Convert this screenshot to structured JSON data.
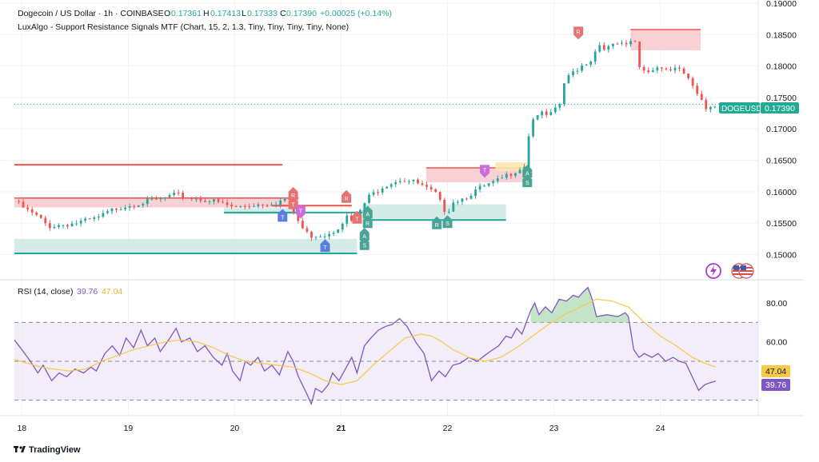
{
  "header": {
    "symbol": "Dogecoin / US Dollar · 1h · COINBASE",
    "o_label": "O",
    "o_value": "0.17361",
    "h_label": "H",
    "h_value": "0.17413",
    "l_label": "L",
    "l_value": "0.17333",
    "c_label": "C",
    "c_value": "0.17390",
    "change": "+0.00025 (+0.14%)",
    "indicator": "LuxAlgo - Support Resistance Signals MTF (Chart, 15, 2, 1.3, Tiny, Tiny, Tiny, Tiny, None)"
  },
  "rsi_header": {
    "name": "RSI (14, close)",
    "rsi_value": "39.76",
    "ma_value": "47.04"
  },
  "price_tag": {
    "symbol": "DOGEUSD",
    "value": "0.17390"
  },
  "rsi_tags": {
    "ma": "47.04",
    "rsi": "39.76"
  },
  "footer": {
    "brand": "TradingView"
  },
  "icons": {
    "flash": "flash-icon",
    "flag": "us-flag-icon",
    "logo": "tradingview-logo-icon"
  },
  "colors": {
    "up": "#26a69a",
    "down": "#ef5350",
    "rsi": "#7e57c2",
    "rsi_ma": "#f7c948",
    "resistance_fill": "#f8c9cc",
    "support_fill": "#cfe9e6",
    "last_price": "#22ab94"
  },
  "chart_data": [
    {
      "type": "candlestick",
      "title": "Dogecoin / US Dollar · 1h · COINBASE",
      "y_ticks": [
        "0.19000",
        "0.18500",
        "0.18000",
        "0.17500",
        "0.17000",
        "0.16500",
        "0.16000",
        "0.15500",
        "0.15000"
      ],
      "ylim": [
        0.146,
        0.1905
      ],
      "x_ticks": [
        "18",
        "19",
        "20",
        "21",
        "22",
        "23",
        "24"
      ],
      "xlim": [
        17.93,
        24.92
      ],
      "last_price": 0.1739,
      "anchors": [
        [
          17.93,
          0.1585
        ],
        [
          18.05,
          0.157
        ],
        [
          18.15,
          0.156
        ],
        [
          18.25,
          0.1545
        ],
        [
          18.35,
          0.1547
        ],
        [
          18.5,
          0.155
        ],
        [
          18.7,
          0.1557
        ],
        [
          18.9,
          0.1575
        ],
        [
          19.1,
          0.1582
        ],
        [
          19.3,
          0.1588
        ],
        [
          19.45,
          0.1595
        ],
        [
          19.6,
          0.159
        ],
        [
          19.8,
          0.1585
        ],
        [
          20.0,
          0.1575
        ],
        [
          20.2,
          0.158
        ],
        [
          20.4,
          0.1583
        ],
        [
          20.5,
          0.159
        ],
        [
          20.55,
          0.157
        ],
        [
          20.62,
          0.1545
        ],
        [
          20.7,
          0.153
        ],
        [
          20.85,
          0.1532
        ],
        [
          20.95,
          0.154
        ],
        [
          21.05,
          0.156
        ],
        [
          21.12,
          0.155
        ],
        [
          21.18,
          0.157
        ],
        [
          21.25,
          0.159
        ],
        [
          21.4,
          0.161
        ],
        [
          21.55,
          0.162
        ],
        [
          21.7,
          0.1615
        ],
        [
          21.8,
          0.1605
        ],
        [
          21.9,
          0.1595
        ],
        [
          21.95,
          0.1575
        ],
        [
          22.0,
          0.1568
        ],
        [
          22.05,
          0.1585
        ],
        [
          22.15,
          0.159
        ],
        [
          22.3,
          0.1605
        ],
        [
          22.45,
          0.1615
        ],
        [
          22.55,
          0.1625
        ],
        [
          22.65,
          0.1635
        ],
        [
          22.72,
          0.164
        ],
        [
          22.78,
          0.171
        ],
        [
          22.85,
          0.1725
        ],
        [
          22.95,
          0.172
        ],
        [
          23.05,
          0.1735
        ],
        [
          23.1,
          0.1775
        ],
        [
          23.18,
          0.179
        ],
        [
          23.25,
          0.18
        ],
        [
          23.35,
          0.181
        ],
        [
          23.42,
          0.1835
        ],
        [
          23.5,
          0.1828
        ],
        [
          23.6,
          0.1835
        ],
        [
          23.7,
          0.183
        ],
        [
          23.75,
          0.185
        ],
        [
          23.8,
          0.18
        ],
        [
          23.88,
          0.179
        ],
        [
          23.95,
          0.18
        ],
        [
          24.05,
          0.1795
        ],
        [
          24.15,
          0.1795
        ],
        [
          24.25,
          0.1785
        ],
        [
          24.32,
          0.176
        ],
        [
          24.38,
          0.1745
        ],
        [
          24.42,
          0.173
        ],
        [
          24.47,
          0.1737
        ],
        [
          24.52,
          0.1739
        ]
      ],
      "resistance_zones": [
        {
          "x0": 17.93,
          "x1": 20.6,
          "y0": 0.1575,
          "y1": 0.159
        },
        {
          "x0": 21.8,
          "x1": 22.75,
          "y0": 0.1615,
          "y1": 0.1638
        },
        {
          "x0": 23.72,
          "x1": 24.38,
          "y0": 0.1825,
          "y1": 0.1858
        }
      ],
      "support_zones": [
        {
          "x0": 17.93,
          "x1": 21.15,
          "y0": 0.1502,
          "y1": 0.1525
        },
        {
          "x0": 19.9,
          "x1": 20.6,
          "y0": 0.1564,
          "y1": 0.1574
        },
        {
          "x0": 21.2,
          "x1": 22.55,
          "y0": 0.1555,
          "y1": 0.158
        }
      ],
      "resistance_lines": [
        {
          "x0": 17.93,
          "x1": 20.45,
          "y": 0.1643
        },
        {
          "x0": 20.35,
          "x1": 21.1,
          "y": 0.1578
        }
      ],
      "support_lines": [
        {
          "x0": 17.93,
          "x1": 21.15,
          "y": 0.1502
        },
        {
          "x0": 19.9,
          "x1": 21.2,
          "y": 0.1567
        },
        {
          "x0": 21.25,
          "x1": 22.55,
          "y": 0.1555
        }
      ],
      "highlight_zone": {
        "x0": 22.45,
        "x1": 22.75,
        "y0": 0.1633,
        "y1": 0.1647
      },
      "signals": [
        {
          "x": 20.55,
          "y": 0.1595,
          "text": "R",
          "kind": "R",
          "dir": "up"
        },
        {
          "x": 20.55,
          "y": 0.158,
          "text": "T",
          "kind": "R",
          "dir": "up"
        },
        {
          "x": 20.45,
          "y": 0.156,
          "text": "T",
          "kind": "T",
          "dir": "up"
        },
        {
          "x": 20.62,
          "y": 0.157,
          "text": "T",
          "kind": "P",
          "dir": "down"
        },
        {
          "x": 21.05,
          "y": 0.159,
          "text": "R",
          "kind": "R",
          "dir": "up"
        },
        {
          "x": 21.15,
          "y": 0.1557,
          "text": "T",
          "kind": "R",
          "dir": "up"
        },
        {
          "x": 21.25,
          "y": 0.1565,
          "text": "A",
          "kind": "S",
          "dir": "up"
        },
        {
          "x": 21.25,
          "y": 0.155,
          "text": "R",
          "kind": "S",
          "dir": "up"
        },
        {
          "x": 21.22,
          "y": 0.153,
          "text": "A",
          "kind": "S",
          "dir": "up"
        },
        {
          "x": 21.22,
          "y": 0.1515,
          "text": "S",
          "kind": "S",
          "dir": "up"
        },
        {
          "x": 20.85,
          "y": 0.1512,
          "text": "T",
          "kind": "T",
          "dir": "up"
        },
        {
          "x": 21.9,
          "y": 0.1548,
          "text": "R",
          "kind": "S",
          "dir": "up"
        },
        {
          "x": 22.0,
          "y": 0.155,
          "text": "S",
          "kind": "S",
          "dir": "up"
        },
        {
          "x": 22.35,
          "y": 0.1635,
          "text": "T",
          "kind": "P",
          "dir": "down"
        },
        {
          "x": 22.75,
          "y": 0.163,
          "text": "A",
          "kind": "S",
          "dir": "up"
        },
        {
          "x": 22.75,
          "y": 0.1615,
          "text": "S",
          "kind": "S",
          "dir": "up"
        },
        {
          "x": 23.23,
          "y": 0.1855,
          "text": "R",
          "kind": "R",
          "dir": "down"
        }
      ]
    },
    {
      "type": "line",
      "title": "RSI (14, close)",
      "y_ticks": [
        "80.00",
        "60.00"
      ],
      "ylim": [
        22,
        92
      ],
      "bands": {
        "upper": 70,
        "middle": 50,
        "lower": 30
      },
      "series": [
        {
          "name": "RSI",
          "color": "#7e57c2",
          "points": [
            [
              17.93,
              61
            ],
            [
              18.0,
              56
            ],
            [
              18.08,
              50
            ],
            [
              18.15,
              44
            ],
            [
              18.2,
              48
            ],
            [
              18.28,
              40
            ],
            [
              18.35,
              44
            ],
            [
              18.42,
              42
            ],
            [
              18.5,
              46
            ],
            [
              18.58,
              44
            ],
            [
              18.65,
              47
            ],
            [
              18.7,
              45
            ],
            [
              18.78,
              54
            ],
            [
              18.85,
              58
            ],
            [
              18.92,
              53
            ],
            [
              18.98,
              62
            ],
            [
              19.05,
              57
            ],
            [
              19.12,
              66
            ],
            [
              19.18,
              58
            ],
            [
              19.25,
              62
            ],
            [
              19.3,
              55
            ],
            [
              19.38,
              61
            ],
            [
              19.45,
              67
            ],
            [
              19.5,
              60
            ],
            [
              19.58,
              62
            ],
            [
              19.65,
              55
            ],
            [
              19.72,
              58
            ],
            [
              19.8,
              52
            ],
            [
              19.88,
              48
            ],
            [
              19.93,
              54
            ],
            [
              19.98,
              45
            ],
            [
              20.05,
              40
            ],
            [
              20.1,
              50
            ],
            [
              20.15,
              48
            ],
            [
              20.22,
              52
            ],
            [
              20.28,
              45
            ],
            [
              20.35,
              48
            ],
            [
              20.42,
              43
            ],
            [
              20.5,
              55
            ],
            [
              20.55,
              50
            ],
            [
              20.6,
              42
            ],
            [
              20.68,
              33
            ],
            [
              20.72,
              28
            ],
            [
              20.76,
              36
            ],
            [
              20.82,
              34
            ],
            [
              20.88,
              38
            ],
            [
              20.92,
              44
            ],
            [
              20.98,
              40
            ],
            [
              21.05,
              47
            ],
            [
              21.1,
              52
            ],
            [
              21.15,
              44
            ],
            [
              21.22,
              58
            ],
            [
              21.28,
              62
            ],
            [
              21.35,
              66
            ],
            [
              21.42,
              68
            ],
            [
              21.48,
              69
            ],
            [
              21.55,
              72
            ],
            [
              21.62,
              68
            ],
            [
              21.7,
              60
            ],
            [
              21.78,
              54
            ],
            [
              21.85,
              40
            ],
            [
              21.92,
              45
            ],
            [
              21.98,
              42
            ],
            [
              22.05,
              48
            ],
            [
              22.12,
              49
            ],
            [
              22.2,
              52
            ],
            [
              22.28,
              50
            ],
            [
              22.35,
              53
            ],
            [
              22.4,
              55
            ],
            [
              22.48,
              58
            ],
            [
              22.55,
              63
            ],
            [
              22.6,
              62
            ],
            [
              22.65,
              67
            ],
            [
              22.7,
              64
            ],
            [
              22.74,
              70
            ],
            [
              22.78,
              76
            ],
            [
              22.82,
              80
            ],
            [
              22.86,
              74
            ],
            [
              22.92,
              78
            ],
            [
              22.98,
              75
            ],
            [
              23.05,
              82
            ],
            [
              23.12,
              81
            ],
            [
              23.18,
              84
            ],
            [
              23.23,
              83
            ],
            [
              23.28,
              86
            ],
            [
              23.32,
              88
            ],
            [
              23.36,
              82
            ],
            [
              23.4,
              73
            ],
            [
              23.5,
              74
            ],
            [
              23.6,
              73
            ],
            [
              23.67,
              75
            ],
            [
              23.7,
              73
            ],
            [
              23.75,
              56
            ],
            [
              23.8,
              52
            ],
            [
              23.85,
              54
            ],
            [
              23.92,
              52
            ],
            [
              23.98,
              54
            ],
            [
              24.05,
              50
            ],
            [
              24.12,
              52
            ],
            [
              24.18,
              50
            ],
            [
              24.24,
              49
            ],
            [
              24.3,
              42
            ],
            [
              24.36,
              35
            ],
            [
              24.42,
              38
            ],
            [
              24.47,
              39
            ],
            [
              24.52,
              39.76
            ]
          ]
        },
        {
          "name": "RSI-based MA",
          "color": "#f7c948",
          "points": [
            [
              17.93,
              51
            ],
            [
              18.05,
              49
            ],
            [
              18.18,
              47
            ],
            [
              18.3,
              46
            ],
            [
              18.45,
              45
            ],
            [
              18.6,
              46
            ],
            [
              18.75,
              50
            ],
            [
              18.9,
              53
            ],
            [
              19.05,
              56
            ],
            [
              19.2,
              58
            ],
            [
              19.35,
              60
            ],
            [
              19.5,
              61
            ],
            [
              19.65,
              60
            ],
            [
              19.8,
              57
            ],
            [
              19.95,
              53
            ],
            [
              20.1,
              50
            ],
            [
              20.25,
              49
            ],
            [
              20.4,
              48
            ],
            [
              20.55,
              47
            ],
            [
              20.7,
              44
            ],
            [
              20.85,
              40
            ],
            [
              21.0,
              38
            ],
            [
              21.15,
              40
            ],
            [
              21.3,
              48
            ],
            [
              21.45,
              55
            ],
            [
              21.6,
              62
            ],
            [
              21.75,
              64
            ],
            [
              21.85,
              63
            ],
            [
              21.95,
              60
            ],
            [
              22.05,
              56
            ],
            [
              22.2,
              52
            ],
            [
              22.35,
              50
            ],
            [
              22.5,
              52
            ],
            [
              22.65,
              57
            ],
            [
              22.8,
              63
            ],
            [
              22.95,
              69
            ],
            [
              23.1,
              74
            ],
            [
              23.25,
              78
            ],
            [
              23.4,
              82
            ],
            [
              23.55,
              81
            ],
            [
              23.7,
              78
            ],
            [
              23.85,
              70
            ],
            [
              24.0,
              63
            ],
            [
              24.15,
              58
            ],
            [
              24.3,
              52
            ],
            [
              24.42,
              49
            ],
            [
              24.52,
              47.04
            ]
          ]
        }
      ]
    }
  ]
}
